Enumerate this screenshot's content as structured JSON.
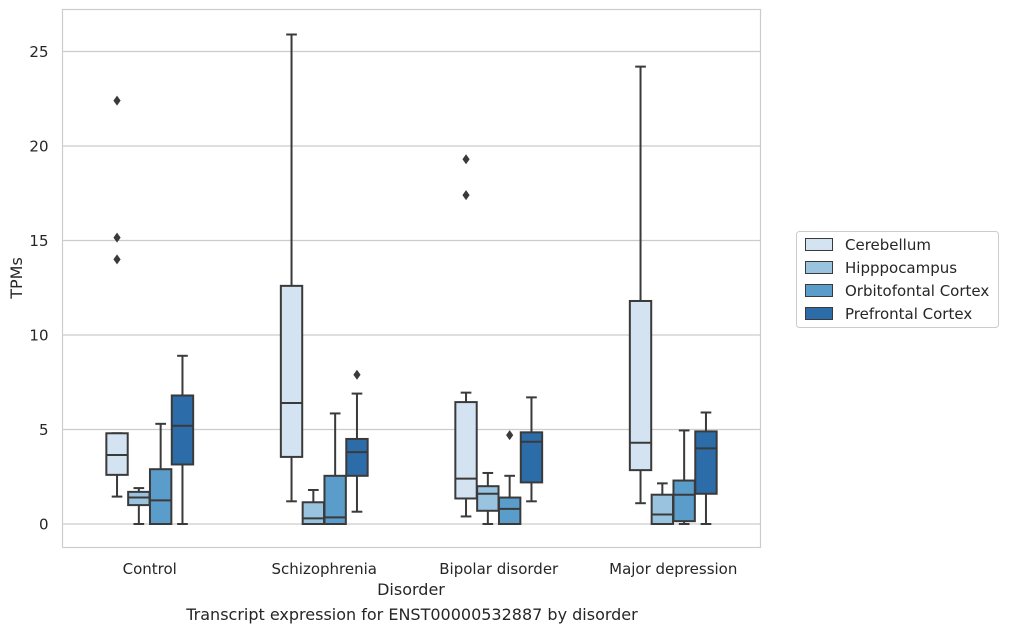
{
  "caption": "Transcript expression for ENST00000532887 by disorder",
  "chart_data": {
    "type": "box",
    "xlabel": "Disorder",
    "ylabel": "TPMs",
    "ylim": [
      -1.2,
      27.2
    ],
    "yticks": [
      0,
      5,
      10,
      15,
      20,
      25
    ],
    "grid": "horizontal",
    "legend_position": "right",
    "categories": [
      "Control",
      "Schizophrenia",
      "Bipolar disorder",
      "Major depression"
    ],
    "series": [
      {
        "name": "Cerebellum",
        "color": "#d4e3f1",
        "boxes": [
          {
            "whisker_low": 1.45,
            "q1": 2.6,
            "median": 3.65,
            "q3": 4.8,
            "whisker_high": 4.8,
            "outliers": [
              14.0,
              15.15,
              22.4
            ]
          },
          {
            "whisker_low": 1.2,
            "q1": 3.55,
            "median": 6.4,
            "q3": 12.6,
            "whisker_high": 25.9,
            "outliers": []
          },
          {
            "whisker_low": 0.4,
            "q1": 1.35,
            "median": 2.4,
            "q3": 6.45,
            "whisker_high": 6.95,
            "outliers": [
              17.4,
              19.3
            ]
          },
          {
            "whisker_low": 1.1,
            "q1": 2.85,
            "median": 4.3,
            "q3": 11.8,
            "whisker_high": 24.2,
            "outliers": []
          }
        ]
      },
      {
        "name": "Hipppocampus",
        "color": "#99c3df",
        "boxes": [
          {
            "whisker_low": 0.0,
            "q1": 1.0,
            "median": 1.4,
            "q3": 1.7,
            "whisker_high": 1.9,
            "outliers": []
          },
          {
            "whisker_low": 0.0,
            "q1": 0.0,
            "median": 0.3,
            "q3": 1.15,
            "whisker_high": 1.8,
            "outliers": []
          },
          {
            "whisker_low": 0.0,
            "q1": 0.7,
            "median": 1.6,
            "q3": 2.0,
            "whisker_high": 2.7,
            "outliers": []
          },
          {
            "whisker_low": 0.0,
            "q1": 0.0,
            "median": 0.5,
            "q3": 1.55,
            "whisker_high": 2.15,
            "outliers": []
          }
        ]
      },
      {
        "name": "Orbitofontal Cortex",
        "color": "#5a9cca",
        "boxes": [
          {
            "whisker_low": 0.0,
            "q1": 0.0,
            "median": 1.25,
            "q3": 2.9,
            "whisker_high": 5.3,
            "outliers": []
          },
          {
            "whisker_low": 0.0,
            "q1": 0.0,
            "median": 0.35,
            "q3": 2.55,
            "whisker_high": 5.85,
            "outliers": []
          },
          {
            "whisker_low": 0.0,
            "q1": 0.0,
            "median": 0.8,
            "q3": 1.4,
            "whisker_high": 2.55,
            "outliers": [
              4.7
            ]
          },
          {
            "whisker_low": 0.0,
            "q1": 0.15,
            "median": 1.55,
            "q3": 2.3,
            "whisker_high": 4.95,
            "outliers": []
          }
        ]
      },
      {
        "name": "Prefrontal Cortex",
        "color": "#2c6da9",
        "boxes": [
          {
            "whisker_low": 0.0,
            "q1": 3.15,
            "median": 5.2,
            "q3": 6.8,
            "whisker_high": 8.9,
            "outliers": []
          },
          {
            "whisker_low": 0.65,
            "q1": 2.55,
            "median": 3.8,
            "q3": 4.5,
            "whisker_high": 6.9,
            "outliers": [
              7.9
            ]
          },
          {
            "whisker_low": 1.2,
            "q1": 2.2,
            "median": 4.35,
            "q3": 4.85,
            "whisker_high": 6.7,
            "outliers": []
          },
          {
            "whisker_low": 0.0,
            "q1": 1.6,
            "median": 4.0,
            "q3": 4.9,
            "whisker_high": 5.9,
            "outliers": []
          }
        ]
      }
    ]
  }
}
